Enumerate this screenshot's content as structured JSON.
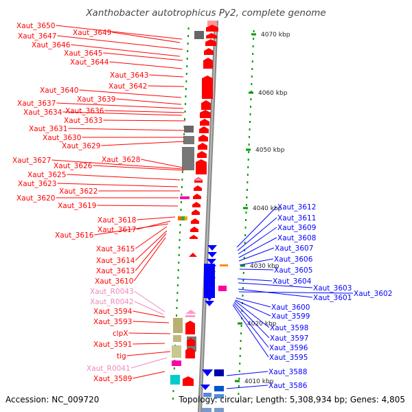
{
  "title": "Xanthobacter autotrophicus Py2, complete genome",
  "footer": {
    "accession": "Accession: NC_009720",
    "summary": "Topology: circular; Length: 5,308,934 bp; Genes: 4,805"
  },
  "colors": {
    "forward_gene": "#ff0000",
    "reverse_gene": "#0000ff",
    "rna_label": "#ee88bb",
    "backbone": "#888888",
    "tick": "#009900"
  },
  "scale_ticks": [
    {
      "label": "4070 kbp",
      "kbp": 4070
    },
    {
      "label": "4060 kbp",
      "kbp": 4060
    },
    {
      "label": "4050 kbp",
      "kbp": 4050
    },
    {
      "label": "4040 kbp",
      "kbp": 4040
    },
    {
      "label": "4030 kbp",
      "kbp": 4030
    },
    {
      "label": "4020 kbp",
      "kbp": 4020
    },
    {
      "label": "4010 kbp",
      "kbp": 4010
    }
  ],
  "left_labels": [
    {
      "text": "Xaut_3650",
      "type": "gene"
    },
    {
      "text": "Xaut_3649",
      "type": "gene"
    },
    {
      "text": "Xaut_3647",
      "type": "gene"
    },
    {
      "text": "Xaut_3646",
      "type": "gene"
    },
    {
      "text": "Xaut_3645",
      "type": "gene"
    },
    {
      "text": "Xaut_3644",
      "type": "gene"
    },
    {
      "text": "Xaut_3643",
      "type": "gene"
    },
    {
      "text": "Xaut_3642",
      "type": "gene"
    },
    {
      "text": "Xaut_3640",
      "type": "gene"
    },
    {
      "text": "Xaut_3639",
      "type": "gene"
    },
    {
      "text": "Xaut_3637",
      "type": "gene"
    },
    {
      "text": "Xaut_3636",
      "type": "gene"
    },
    {
      "text": "Xaut_3634",
      "type": "gene"
    },
    {
      "text": "Xaut_3633",
      "type": "gene"
    },
    {
      "text": "Xaut_3631",
      "type": "gene"
    },
    {
      "text": "Xaut_3630",
      "type": "gene"
    },
    {
      "text": "Xaut_3629",
      "type": "gene"
    },
    {
      "text": "Xaut_3628",
      "type": "gene"
    },
    {
      "text": "Xaut_3627",
      "type": "gene"
    },
    {
      "text": "Xaut_3626",
      "type": "gene"
    },
    {
      "text": "Xaut_3625",
      "type": "gene"
    },
    {
      "text": "Xaut_3623",
      "type": "gene"
    },
    {
      "text": "Xaut_3622",
      "type": "gene"
    },
    {
      "text": "Xaut_3620",
      "type": "gene"
    },
    {
      "text": "Xaut_3619",
      "type": "gene"
    },
    {
      "text": "Xaut_3618",
      "type": "gene"
    },
    {
      "text": "Xaut_3617",
      "type": "gene"
    },
    {
      "text": "Xaut_3616",
      "type": "gene"
    },
    {
      "text": "Xaut_3615",
      "type": "gene"
    },
    {
      "text": "Xaut_3614",
      "type": "gene"
    },
    {
      "text": "Xaut_3613",
      "type": "gene"
    },
    {
      "text": "Xaut_3610",
      "type": "gene"
    },
    {
      "text": "Xaut_R0043",
      "type": "rna"
    },
    {
      "text": "Xaut_R0042",
      "type": "rna"
    },
    {
      "text": "Xaut_3594",
      "type": "gene"
    },
    {
      "text": "Xaut_3593",
      "type": "gene"
    },
    {
      "text": "clpX",
      "type": "gene"
    },
    {
      "text": "Xaut_3591",
      "type": "gene"
    },
    {
      "text": "tig",
      "type": "gene"
    },
    {
      "text": "Xaut_R0041",
      "type": "rna"
    },
    {
      "text": "Xaut_3589",
      "type": "gene"
    }
  ],
  "right_labels": [
    {
      "text": "Xaut_3612"
    },
    {
      "text": "Xaut_3611"
    },
    {
      "text": "Xaut_3609"
    },
    {
      "text": "Xaut_3608"
    },
    {
      "text": "Xaut_3607"
    },
    {
      "text": "Xaut_3606"
    },
    {
      "text": "Xaut_3605"
    },
    {
      "text": "Xaut_3604"
    },
    {
      "text": "Xaut_3603"
    },
    {
      "text": "Xaut_3602"
    },
    {
      "text": "Xaut_3601"
    },
    {
      "text": "Xaut_3600"
    },
    {
      "text": "Xaut_3599"
    },
    {
      "text": "Xaut_3598"
    },
    {
      "text": "Xaut_3597"
    },
    {
      "text": "Xaut_3596"
    },
    {
      "text": "Xaut_3595"
    },
    {
      "text": "Xaut_3588"
    },
    {
      "text": "Xaut_3586"
    }
  ]
}
